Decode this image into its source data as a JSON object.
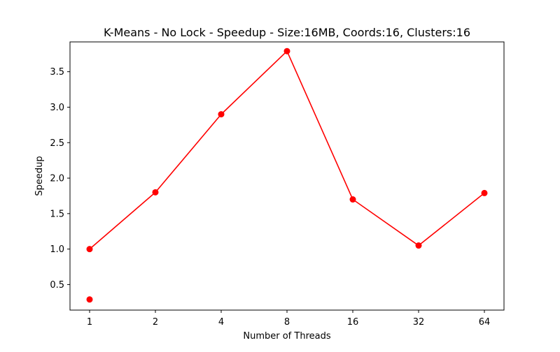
{
  "chart_data": {
    "type": "line",
    "title": "K-Means - No Lock - Speedup - Size:16MB, Coords:16, Clusters:16",
    "xlabel": "Number of Threads",
    "ylabel": "Speedup",
    "categories": [
      "1",
      "2",
      "4",
      "8",
      "16",
      "32",
      "64"
    ],
    "x_scale": "categorical",
    "ylim": [
      0.14,
      3.92
    ],
    "yticks": [
      0.5,
      1.0,
      1.5,
      2.0,
      2.5,
      3.0,
      3.5
    ],
    "ytick_labels": [
      "0.5",
      "1.0",
      "1.5",
      "2.0",
      "2.5",
      "3.0",
      "3.5"
    ],
    "grid": false,
    "legend": "none",
    "series": [
      {
        "color": "#ff0000",
        "style": "line-with-markers",
        "values": [
          1.0,
          1.8,
          2.9,
          3.79,
          1.7,
          1.05,
          1.79
        ]
      },
      {
        "color": "#ff0000",
        "style": "markers-only",
        "x": [
          "1"
        ],
        "values": [
          0.29
        ]
      }
    ]
  }
}
